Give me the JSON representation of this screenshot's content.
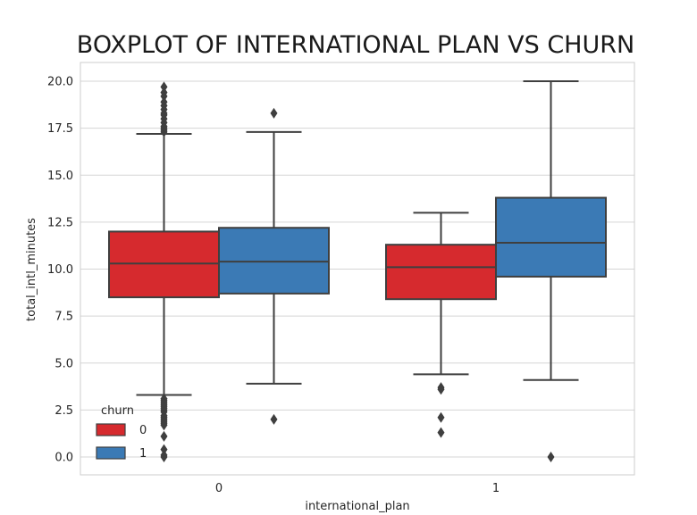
{
  "chart_data": {
    "type": "boxplot",
    "title": "BOXPLOT OF INTERNATIONAL PLAN VS CHURN",
    "xlabel": "international_plan",
    "ylabel": "total_intl_minutes",
    "categories": [
      "0",
      "1"
    ],
    "ylim": [
      -0.95,
      21.0
    ],
    "yticks": [
      "0.0",
      "2.5",
      "5.0",
      "7.5",
      "10.0",
      "12.5",
      "15.0",
      "17.5",
      "20.0"
    ],
    "grid": true,
    "legend": {
      "title": "churn",
      "placement": "lower-left"
    },
    "series": [
      {
        "name": "0",
        "color": "#d62a2e",
        "boxes": [
          {
            "category": "0",
            "whisker_low": 3.3,
            "q1": 8.5,
            "median": 10.3,
            "q3": 12.0,
            "whisker_high": 17.2,
            "outliers": [
              19.7,
              19.4,
              19.2,
              18.9,
              18.7,
              18.5,
              18.3,
              18.2,
              18.0,
              17.8,
              17.6,
              17.5,
              17.4,
              17.3,
              3.1,
              3.0,
              2.9,
              2.8,
              2.7,
              2.6,
              2.5,
              2.4,
              2.2,
              2.1,
              2.0,
              1.9,
              1.8,
              1.7,
              1.1,
              0.4,
              0.1,
              0.0
            ]
          },
          {
            "category": "1",
            "whisker_low": 4.4,
            "q1": 8.4,
            "median": 10.1,
            "q3": 11.3,
            "whisker_high": 13.0,
            "outliers": [
              3.7,
              3.6,
              2.1,
              1.3
            ]
          }
        ]
      },
      {
        "name": "1",
        "color": "#3b7ab5",
        "boxes": [
          {
            "category": "0",
            "whisker_low": 3.9,
            "q1": 8.7,
            "median": 10.4,
            "q3": 12.2,
            "whisker_high": 17.3,
            "outliers": [
              18.3,
              2.0
            ]
          },
          {
            "category": "1",
            "whisker_low": 4.1,
            "q1": 9.6,
            "median": 11.4,
            "q3": 13.8,
            "whisker_high": 20.0,
            "outliers": [
              0.0
            ]
          }
        ]
      }
    ]
  }
}
